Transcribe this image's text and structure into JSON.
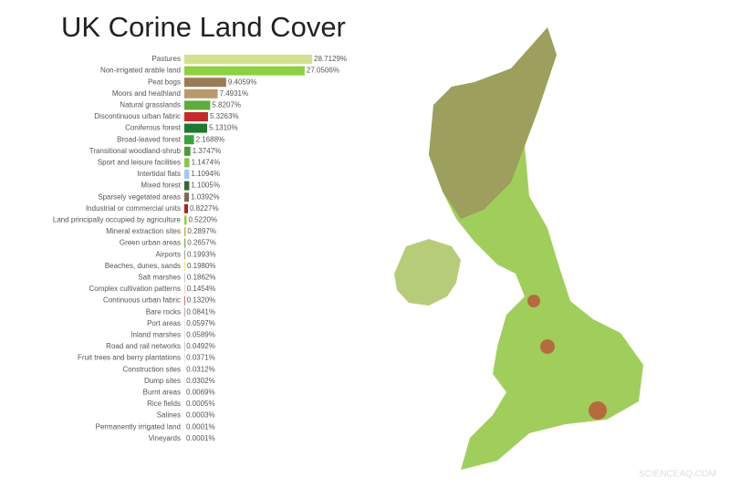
{
  "chart_data": {
    "type": "bar",
    "orientation": "horizontal",
    "title": "UK Corine Land Cover",
    "categories": [
      "Pastures",
      "Non-irrigated arable land",
      "Peat bogs",
      "Moors and heathland",
      "Natural grasslands",
      "Discontinuous urban fabric",
      "Coniferous forest",
      "Broad-leaved forest",
      "Transitional woodland-shrub",
      "Sport and leisure facilities",
      "Intertidal flats",
      "Mixed forest",
      "Sparsely vegetated areas",
      "Industrial or commercial units",
      "Land principally occupied by agriculture",
      "Mineral extraction sites",
      "Green urban areas",
      "Airports",
      "Beaches, dunes, sands",
      "Salt marshes",
      "Complex cultivation patterns",
      "Continuous urban fabric",
      "Bare rocks",
      "Port areas",
      "Inland marshes",
      "Road and rail networks",
      "Fruit trees and berry plantations",
      "Construction sites",
      "Dump sites",
      "Burnt areas",
      "Rice fields",
      "Salines",
      "Permanently irrigated land",
      "Vineyards"
    ],
    "values": [
      28.7129,
      27.0506,
      9.4059,
      7.4931,
      5.8207,
      5.3263,
      5.131,
      2.1688,
      1.3747,
      1.1474,
      1.1094,
      1.1005,
      1.0392,
      0.8227,
      0.522,
      0.2897,
      0.2657,
      0.1993,
      0.198,
      0.1862,
      0.1454,
      0.132,
      0.0841,
      0.0597,
      0.0589,
      0.0492,
      0.0371,
      0.0312,
      0.0302,
      0.0069,
      0.0005,
      0.0003,
      0.0001,
      0.0001
    ],
    "value_labels": [
      "28.7129%",
      "27.0506%",
      "9.4059%",
      "7.4931%",
      "5.8207%",
      "5.3263%",
      "5.1310%",
      "2.1688%",
      "1.3747%",
      "1.1474%",
      "1.1094%",
      "1.1005%",
      "1.0392%",
      "0.8227%",
      "0.5220%",
      "0.2897%",
      "0.2657%",
      "0.1993%",
      "0.1980%",
      "0.1862%",
      "0.1454%",
      "0.1320%",
      "0.0841%",
      "0.0597%",
      "0.0589%",
      "0.0492%",
      "0.0371%",
      "0.0312%",
      "0.0302%",
      "0.0069%",
      "0.0005%",
      "0.0003%",
      "0.0001%",
      "0.0001%"
    ],
    "colors": [
      "#d4e08a",
      "#8cd13e",
      "#9a7b55",
      "#b89a6c",
      "#5aae3a",
      "#c8282a",
      "#1a7a2e",
      "#3aa33c",
      "#4f9a3a",
      "#8bc34a",
      "#a8c8e8",
      "#2f6b2f",
      "#7a6a4a",
      "#b02020",
      "#9ccc3a",
      "#c8b040",
      "#7cb342",
      "#a0a0a0",
      "#f0e860",
      "#b0c8e0",
      "#d8c890",
      "#c02030",
      "#5a3a2a",
      "#a0b8d0",
      "#b8a070",
      "#202020",
      "#c0306a",
      "#d0d0d0",
      "#a09050",
      "#603030",
      "#eeeeee",
      "#605060",
      "#4040a0",
      "#802040"
    ],
    "watermark": "SCIENCEAQ.COM"
  }
}
